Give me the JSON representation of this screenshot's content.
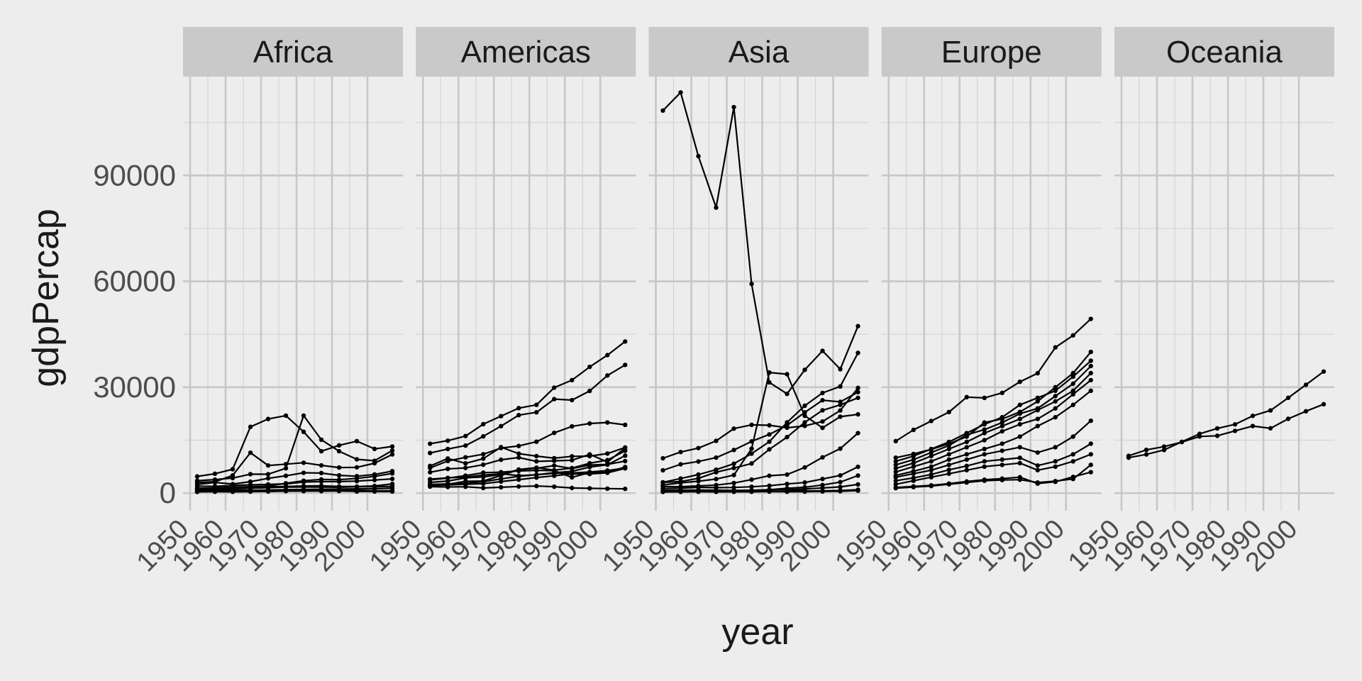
{
  "chart_data": {
    "type": "line",
    "facet_by": "continent",
    "xlabel": "year",
    "ylabel": "gdpPercap",
    "xlim": [
      1948,
      2010
    ],
    "ylim": [
      -5000,
      118000
    ],
    "x_ticks": [
      1950,
      1960,
      1970,
      1980,
      1990,
      2000
    ],
    "x_tick_labels": [
      "1950",
      "1960",
      "1970",
      "1980",
      "1990",
      "2000"
    ],
    "y_ticks": [
      0,
      30000,
      60000,
      90000
    ],
    "y_tick_labels": [
      "0",
      "30000",
      "60000",
      "90000"
    ],
    "x": [
      1952,
      1957,
      1962,
      1967,
      1972,
      1977,
      1982,
      1987,
      1992,
      1997,
      2002,
      2007
    ],
    "grid": true,
    "line_color": "#000000",
    "facets": [
      {
        "panel": "Africa",
        "series": [
          {
            "values": [
              4725,
              5487,
              6758,
              18773,
              21011,
              21951,
              17364,
              11864,
              13522,
              14723,
              12522,
              13206
            ]
          },
          {
            "values": [
              3521,
              3828,
              4270,
              5365,
              5352,
              7029,
              21952,
              15114,
              11860,
              9577,
              9165,
              12057
            ]
          },
          {
            "values": [
              3013,
              3215,
              5001,
              11450,
              7829,
              8206,
              8598,
              7856,
              7247,
              7306,
              8459,
              10957
            ]
          },
          {
            "values": [
              2449,
              3014,
              2551,
              3247,
              4183,
              4910,
              5745,
              5681,
              5023,
              4797,
              5288,
              6223
            ]
          },
          {
            "values": [
              1254,
              1458,
              1694,
              1815,
              2024,
              2785,
              3504,
              3885,
              3794,
              4173,
              4754,
              5581
            ]
          },
          {
            "values": [
              1969,
              1919,
              2155,
              2344,
              2480,
              2620,
              3131,
              3253,
              3261,
              3392,
              3702,
              4020
            ]
          },
          {
            "values": [
              1069,
              1132,
              1232,
              1393,
              1539,
              1717,
              1734,
              1720,
              1659,
              1792,
              1824,
              1889
            ]
          },
          {
            "values": [
              1388,
              1475,
              1601,
              1742,
              1786,
              1872,
              2012,
              2050,
              1893,
              1846,
              2041,
              2602
            ]
          },
          {
            "values": [
              543,
              618,
              722,
              795,
              873,
              957,
              1021,
              1082,
              1131,
              1206,
              1274,
              1386
            ]
          },
          {
            "values": [
              779,
              820,
              853,
              836,
              740,
              760,
              806,
              823,
              1004,
              1003,
              1222,
              1391
            ]
          },
          {
            "values": [
              469,
              495,
              556,
              566,
              624,
              684,
              635,
              560,
              580,
              596,
              624,
              682
            ]
          },
          {
            "values": [
              339,
              380,
              355,
              413,
              464,
              556,
              559,
              621,
              632,
              463,
              446,
              430
            ]
          }
        ]
      },
      {
        "panel": "Americas",
        "series": [
          {
            "values": [
              13990,
              14847,
              16173,
              19530,
              21806,
              24073,
              25010,
              29884,
              32004,
              35767,
              39097,
              42952
            ]
          },
          {
            "values": [
              11367,
              12490,
              13462,
              16077,
              18971,
              22091,
              22899,
              26627,
              26343,
              28955,
              33329,
              36319
            ]
          },
          {
            "values": [
              7144,
              9098,
              10136,
              11021,
              12775,
              13367,
              14560,
              17071,
              18906,
              19722,
              20010,
              19329
            ]
          },
          {
            "values": [
              5911,
              6857,
              7133,
              8053,
              9443,
              10079,
              8998,
              9140,
              9308,
              10968,
              8798,
              12779
            ]
          },
          {
            "values": [
              7690,
              9803,
              8423,
              9765,
              13016,
              11174,
              10479,
              9883,
              10418,
              10473,
              11206,
              12924
            ]
          },
          {
            "values": [
              3940,
              4316,
              4518,
              5107,
              5494,
              4944,
              5198,
              5787,
              6149,
              7377,
              8046,
              10611
            ]
          },
          {
            "values": [
              2108,
              2487,
              3337,
              3430,
              4986,
              6660,
              7031,
              7807,
              6950,
              7958,
              8131,
              9066
            ]
          },
          {
            "values": [
              3048,
              3421,
              4308,
              4579,
              5280,
              6679,
              7213,
              6481,
              7104,
              8458,
              9354,
              11977
            ]
          },
          {
            "values": [
              2144,
              2323,
              2492,
              2679,
              3265,
              3816,
              4398,
              4903,
              5445,
              5414,
              5755,
              7006
            ]
          },
          {
            "values": [
              3759,
              4246,
              4957,
              5788,
              5938,
              6282,
              6434,
              6361,
              4446,
              5838,
              5909,
              7408
            ]
          },
          {
            "values": [
              2428,
              2617,
              2750,
              3243,
              4032,
              4749,
              5209,
              5600,
              5700,
              6000,
              6400,
              7100
            ]
          },
          {
            "values": [
              1840,
              1726,
              1797,
              1452,
              1654,
              1874,
              2011,
              1823,
              1456,
              1342,
              1270,
              1202
            ]
          }
        ]
      },
      {
        "panel": "Asia",
        "series": [
          {
            "values": [
              108382,
              113523,
              95458,
              80895,
              109348,
              59265,
              31354,
              28118,
              34933,
              40301,
              35110,
              47307
            ]
          },
          {
            "values": [
              9868,
              11636,
              12754,
              14805,
              18269,
              19340,
              19211,
              18524,
              19035,
              20292,
              23404,
              29796
            ]
          },
          {
            "values": [
              3054,
              4129,
              5259,
              6631,
              8316,
              11186,
              14561,
              20038,
              24757,
              28377,
              30209,
              39725
            ]
          },
          {
            "values": [
              6460,
              8158,
              8958,
              10062,
              12212,
              14646,
              16617,
              19207,
              22868,
              26310,
              25857,
              28605
            ]
          },
          {
            "values": [
              3035,
              3290,
              4188,
              5907,
              7105,
              8393,
              12387,
              15871,
              20038,
              23449,
              25000,
              27000
            ]
          },
          {
            "values": [
              2316,
              2913,
              3369,
              3975,
              5118,
              12573,
              34168,
              33694,
              21905,
              18500,
              21652,
              22316
            ]
          },
          {
            "values": [
              1831,
              1810,
              2037,
              2278,
              2849,
              3828,
              4920,
              5249,
              7277,
              10133,
              12600,
              17000
            ]
          },
          {
            "values": [
              1273,
              1413,
              1624,
              1542,
              1600,
              1800,
              2100,
              2600,
              3000,
              4000,
              5000,
              7458
            ]
          },
          {
            "values": [
              400,
              576,
              488,
              612,
              677,
              741,
              962,
              1379,
              1655,
              2289,
              3119,
              4959
            ]
          },
          {
            "values": [
              547,
              590,
              658,
              701,
              724,
              813,
              856,
              977,
              1165,
              1458,
              1747,
              2452
            ]
          },
          {
            "values": [
              331,
              350,
              388,
              349,
              357,
              371,
              424,
              385,
              416,
              460,
              534,
              684
            ]
          },
          {
            "values": [
              779,
              821,
              853,
              836,
              740,
              786,
              978,
              852,
              649,
              635,
              727,
              975
            ]
          }
        ]
      },
      {
        "panel": "Europe",
        "series": [
          {
            "values": [
              14734,
              17910,
              20431,
              22966,
              27195,
              26982,
              28398,
              31541,
              33965,
              41283,
              44684,
              49357
            ]
          },
          {
            "values": [
              10039,
              11100,
              12400,
              14000,
              16000,
              20000,
              21000,
              23000,
              26000,
              30000,
              34000,
              40000
            ]
          },
          {
            "values": [
              9000,
              10500,
              12500,
              14500,
              17000,
              19500,
              21500,
              25000,
              27000,
              29000,
              33000,
              37500
            ]
          },
          {
            "values": [
              8000,
              9500,
              11500,
              13500,
              16500,
              18000,
              20000,
              22500,
              24000,
              27500,
              31000,
              36000
            ]
          },
          {
            "values": [
              7000,
              8500,
              10500,
              12500,
              14500,
              17000,
              19000,
              21000,
              23500,
              26000,
              29000,
              34000
            ]
          },
          {
            "values": [
              6000,
              7500,
              9000,
              11000,
              13000,
              15000,
              17500,
              19500,
              21000,
              24000,
              28000,
              32000
            ]
          },
          {
            "values": [
              5000,
              6200,
              7500,
              9500,
              11000,
              12500,
              14000,
              16000,
              19000,
              21500,
              25000,
              29000
            ]
          },
          {
            "values": [
              4500,
              5500,
              6500,
              8000,
              9500,
              11000,
              12000,
              13000,
              11500,
              13000,
              16000,
              20500
            ]
          },
          {
            "values": [
              3500,
              4300,
              5300,
              6600,
              7700,
              9000,
              9500,
              10000,
              7800,
              9000,
              11000,
              14000
            ]
          },
          {
            "values": [
              2500,
              3500,
              4500,
              5500,
              6500,
              7500,
              8000,
              8500,
              6500,
              7500,
              9000,
              11000
            ]
          },
          {
            "values": [
              1600,
              1900,
              2200,
              2700,
              3300,
              3800,
              4100,
              4500,
              2700,
              3200,
              4600,
              5937
            ]
          },
          {
            "values": [
              1400,
              1700,
              2000,
              2500,
              3000,
              3500,
              3700,
              3800,
              3000,
              3400,
              4000,
              8000
            ]
          }
        ]
      },
      {
        "panel": "Oceania",
        "series": [
          {
            "values": [
              10040,
              10950,
              12217,
              14526,
              16789,
              18334,
              19477,
              21889,
              23425,
              26998,
              30688,
              34435
            ]
          },
          {
            "values": [
              10557,
              12247,
              13176,
              14464,
              16046,
              16234,
              17632,
              19007,
              18363,
              21050,
              23190,
              25185
            ]
          }
        ]
      }
    ]
  }
}
